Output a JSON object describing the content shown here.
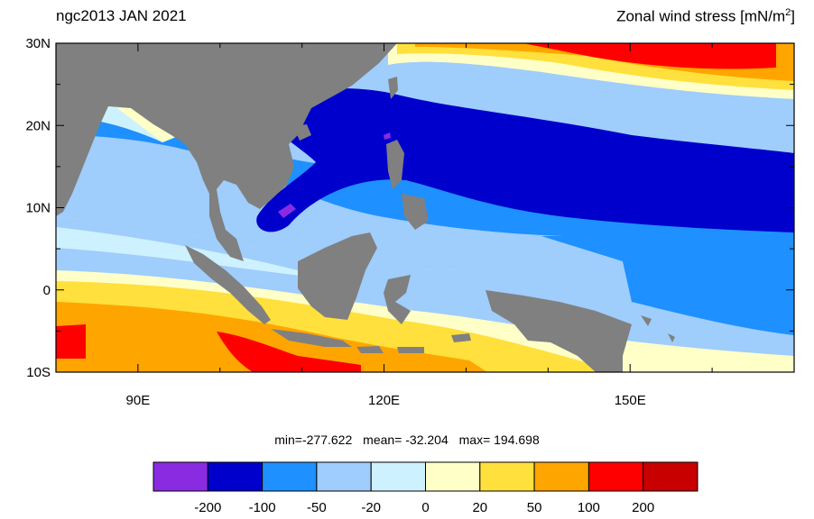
{
  "title_left": "ngc2013 JAN 2021",
  "title_right": {
    "main": "Zonal wind stress [mN/m",
    "sup": "2",
    "close": "]"
  },
  "map": {
    "lon_range": [
      80,
      170
    ],
    "lat_range": [
      -10,
      30
    ],
    "lat_ticks": [
      "30N",
      "20N",
      "10N",
      "0",
      "10S"
    ],
    "lon_ticks": [
      "90E",
      "120E",
      "150E"
    ],
    "land_color": "#808080"
  },
  "stats": {
    "min": "min=-277.622",
    "mean": "mean= -32.204",
    "max": "max= 194.698"
  },
  "colorbar": {
    "colors": [
      "#8a2be2",
      "#0000cd",
      "#1e90ff",
      "#9fcdfc",
      "#cdf1ff",
      "#ffffc8",
      "#ffe03c",
      "#ffa500",
      "#ff0000",
      "#c80000"
    ],
    "labels": [
      "-200",
      "-100",
      "-50",
      "-20",
      "0",
      "20",
      "50",
      "100",
      "200"
    ]
  }
}
